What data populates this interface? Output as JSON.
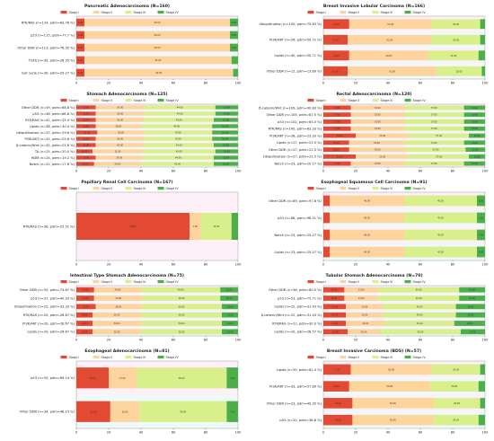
{
  "legend_labels": [
    "Stage I",
    "Stage II",
    "Stage III",
    "Stage IV"
  ],
  "colors": {
    "stage1": "#e34a33",
    "stage2": "#fdd49e",
    "stage3": "#d9ef8b",
    "stage4": "#4daf4a",
    "alt_band": "#fce4f3",
    "alt_band2": "#dff6f4"
  },
  "chart_data": [
    {
      "type": "bar",
      "title": "Pancreatic Adenocarcinoma (N=160)",
      "xlim": [
        0,
        100
      ],
      "xticks": [
        0,
        20,
        40,
        60,
        80,
        100
      ],
      "categories": [
        "RTK/RAS (n=124, pdm=83.78 %)",
        "p53 (n=115, pdm=77.7 %)",
        "Other DDR (n=113, pdm=76.35 %)",
        "TGFb (n=39, pdm=26.35 %)",
        "Cell cycle (n=30, pdm=20.27 %)"
      ],
      "series": [
        {
          "name": "Stage I",
          "values": [
            5,
            5,
            5,
            5,
            5
          ]
        },
        {
          "name": "Stage II",
          "values": [
            90,
            90,
            90,
            91,
            92
          ]
        },
        {
          "name": "Stage III",
          "values": [
            0,
            0,
            0,
            0,
            0
          ]
        },
        {
          "name": "Stage IV",
          "values": [
            5,
            5,
            5,
            4,
            3
          ]
        }
      ]
    },
    {
      "type": "bar",
      "title": "Breast Invasive Lobular Carcinoma (N=166)",
      "xlim": [
        0,
        100
      ],
      "xticks": [
        0,
        20,
        40,
        60,
        80,
        100
      ],
      "categories": [
        "Ubiquitination (n=100, pdm=75.63 %)",
        "PI3K/AKT (n=26, pdm=59.72 %)",
        "Lipids (n=40, pdm=50.71 %)",
        "Other DDR (n=12, pdm=13.89 %)"
      ],
      "series": [
        {
          "name": "Stage I",
          "values": [
            16,
            15,
            16,
            15
          ]
        },
        {
          "name": "Stage II",
          "values": [
            51,
            52,
            49,
            55
          ]
        },
        {
          "name": "Stage III",
          "values": [
            30,
            30,
            31,
            28
          ]
        },
        {
          "name": "Stage IV",
          "values": [
            3,
            3,
            4,
            2
          ]
        }
      ]
    },
    {
      "type": "bar",
      "title": "Stomach Adenocarcinoma (N=125)",
      "xlim": [
        0,
        100
      ],
      "xticks": [
        0,
        20,
        40,
        60,
        80,
        100
      ],
      "categories": [
        "Other DDR (n=49, pdm=68.8 %)",
        "p53 (n=48, pdm=68.8 %)",
        "RTK/RAS (n=41, pdm=33.4 %)",
        "Lipids (n=38, pdm=30.4 %)",
        "Ubiquitination (n=37, pdm=29.6 %)",
        "PI3K/AKT (n=32, pdm=25.6 %)",
        "β-catenin/Wnt (n=32, pdm=25.6 %)",
        "TA (n=25, pdm=20.0 %)",
        "HDM (n=24, pdm=19.2 %)",
        "Notch (n=22, pdm=17.6 %)"
      ],
      "series": [
        {
          "name": "Stage I",
          "values": [
            12,
            12,
            12,
            12,
            13,
            12,
            12,
            10,
            12,
            11
          ]
        },
        {
          "name": "Stage II",
          "values": [
            30,
            30,
            30,
            28,
            29,
            30,
            30,
            31,
            29,
            29
          ]
        },
        {
          "name": "Stage III",
          "values": [
            44,
            44,
            43,
            44,
            42,
            42,
            43,
            45,
            44,
            45
          ]
        },
        {
          "name": "Stage IV",
          "values": [
            14,
            14,
            15,
            16,
            16,
            16,
            15,
            14,
            15,
            15
          ]
        }
      ]
    },
    {
      "type": "bar",
      "title": "Rectal Adenocarcinoma (N=120)",
      "xlim": [
        0,
        100
      ],
      "xticks": [
        0,
        20,
        40,
        60,
        80,
        100
      ],
      "categories": [
        "β-catenin/Wnt (n=109, pdm=90.83 %)",
        "Other DDR (n=105, pdm=87.5 %)",
        "p53 (n=102, pdm=85.0 %)",
        "RTK/RAS (n=100, pdm=83.33 %)",
        "PI3K/AKT (n=28, pdm=23.33 %)",
        "Lipids (n=27, pdm=22.5 %)",
        "Other DDR (n=27, pdm=22.5 %)",
        "Ubiquitination (n=27, pdm=22.5 %)",
        "Notch (n=23, pdm=19.17 %)"
      ],
      "series": [
        {
          "name": "Stage I",
          "values": [
            17,
            17,
            17,
            17,
            20,
            16,
            16,
            20,
            17
          ]
        },
        {
          "name": "Stage II",
          "values": [
            33,
            33,
            33,
            33,
            33,
            34,
            35,
            33,
            33
          ]
        },
        {
          "name": "Stage III",
          "values": [
            37,
            37,
            37,
            37,
            37,
            37,
            37,
            37,
            37
          ]
        },
        {
          "name": "Stage IV",
          "values": [
            13,
            13,
            13,
            13,
            10,
            13,
            12,
            10,
            13
          ]
        }
      ]
    },
    {
      "type": "bar",
      "title": "Papillary Renal Cell Carcinoma (N=167)",
      "xlim": [
        0,
        100
      ],
      "xticks": [
        0,
        20,
        40,
        60,
        80,
        100
      ],
      "categories": [
        "RTK/RAS (n=36, pdm=25.51 %)"
      ],
      "series": [
        {
          "name": "Stage I",
          "values": [
            70
          ]
        },
        {
          "name": "Stage II",
          "values": [
            7
          ]
        },
        {
          "name": "Stage III",
          "values": [
            19
          ]
        },
        {
          "name": "Stage IV",
          "values": [
            4
          ]
        }
      ]
    },
    {
      "type": "bar",
      "title": "Esophageal Squamous Cell Carcinoma (N=91)",
      "xlim": [
        0,
        100
      ],
      "xticks": [
        0,
        20,
        40,
        60,
        80,
        100
      ],
      "categories": [
        "Other DDR (n=89, pdm=97.8 %)",
        "p53 (n=88, pdm=96.51 %)",
        "Notch (n=23, pdm=25.27 %)",
        "Lipids (n=23, pdm=25.27 %)"
      ],
      "series": [
        {
          "name": "Stage I",
          "values": [
            4,
            4,
            4,
            4
          ]
        },
        {
          "name": "Stage II",
          "values": [
            46,
            46,
            46,
            46
          ]
        },
        {
          "name": "Stage III",
          "values": [
            45,
            45,
            45,
            45
          ]
        },
        {
          "name": "Stage IV",
          "values": [
            5,
            5,
            5,
            5
          ]
        }
      ]
    },
    {
      "type": "bar",
      "title": "Intestinal Type Stomach Adenocarcinoma (N=75)",
      "xlim": [
        0,
        100
      ],
      "xticks": [
        0,
        20,
        40,
        60,
        80,
        100
      ],
      "categories": [
        "Other DDR (n=55, pdm=73.67 %)",
        "p53 (n=37, pdm=49.33 %)",
        "Ubiquitination (n=25, pdm=33.33 %)",
        "RTK/RAS (n=20, pdm=26.67 %)",
        "PI3K/AKT (n=20, pdm=26.67 %)",
        "Lipids (n=20, pdm=26.67 %)"
      ],
      "series": [
        {
          "name": "Stage I",
          "values": [
            11,
            11,
            12,
            10,
            10,
            10
          ]
        },
        {
          "name": "Stage II",
          "values": [
            29,
            30,
            28,
            30,
            30,
            30
          ]
        },
        {
          "name": "Stage III",
          "values": [
            49,
            48,
            50,
            50,
            50,
            50
          ]
        },
        {
          "name": "Stage IV",
          "values": [
            11,
            11,
            10,
            10,
            10,
            10
          ]
        }
      ]
    },
    {
      "type": "bar",
      "title": "Tubular Stomach Adenocarcinoma (N=70)",
      "xlim": [
        0,
        100
      ],
      "xticks": [
        0,
        20,
        40,
        60,
        80,
        100
      ],
      "categories": [
        "Other DDR (n=56, pdm=80.0 %)",
        "p53 (n=53, pdm=75.71 %)",
        "Lipids (n=22, pdm=31.43 %)",
        "β-catenin/Wnt (n=22, pdm=31.43 %)",
        "RTK/RAS (n=21, pdm=30.0 %)",
        "Lipids (n=20, pdm=28.57 %)"
      ],
      "series": [
        {
          "name": "Stage I",
          "values": [
            13,
            13,
            14,
            14,
            14,
            15
          ]
        },
        {
          "name": "Stage II",
          "values": [
            21,
            21,
            23,
            23,
            24,
            20
          ]
        },
        {
          "name": "Stage III",
          "values": [
            50,
            50,
            45,
            45,
            43,
            50
          ]
        },
        {
          "name": "Stage IV",
          "values": [
            16,
            16,
            18,
            18,
            19,
            15
          ]
        }
      ]
    },
    {
      "type": "bar",
      "title": "Esophageal Adenocarcinoma (N=81)",
      "xlim": [
        0,
        100
      ],
      "xticks": [
        0,
        20,
        40,
        60,
        80,
        100
      ],
      "categories": [
        "p53 (n=55, pdm=69.14 %)",
        "Other DDR (n=34, pdm=48.15 %)"
      ],
      "series": [
        {
          "name": "Stage I",
          "values": [
            20,
            21
          ]
        },
        {
          "name": "Stage II",
          "values": [
            17,
            18
          ]
        },
        {
          "name": "Stage III",
          "values": [
            56,
            54
          ]
        },
        {
          "name": "Stage IV",
          "values": [
            7,
            7
          ]
        }
      ]
    },
    {
      "type": "bar",
      "title": "Breast Invasive Carcinoma (BDS) (N=57)",
      "xlim": [
        0,
        100
      ],
      "xticks": [
        0,
        20,
        40,
        60,
        80,
        100
      ],
      "categories": [
        "Lipids (n=35, pdm=61.4 %)",
        "PI3K/AKT (n=33, pdm=57.89 %)",
        "Other DDR (n=23, pdm=40.35 %)",
        "p53 (n=22, pdm=38.6 %)"
      ],
      "series": [
        {
          "name": "Stage I",
          "values": [
            17,
            16,
            18,
            18
          ]
        },
        {
          "name": "Stage II",
          "values": [
            50,
            50,
            50,
            50
          ]
        },
        {
          "name": "Stage III",
          "values": [
            30,
            30,
            29,
            28
          ]
        },
        {
          "name": "Stage IV",
          "values": [
            3,
            4,
            3,
            4
          ]
        }
      ]
    }
  ]
}
